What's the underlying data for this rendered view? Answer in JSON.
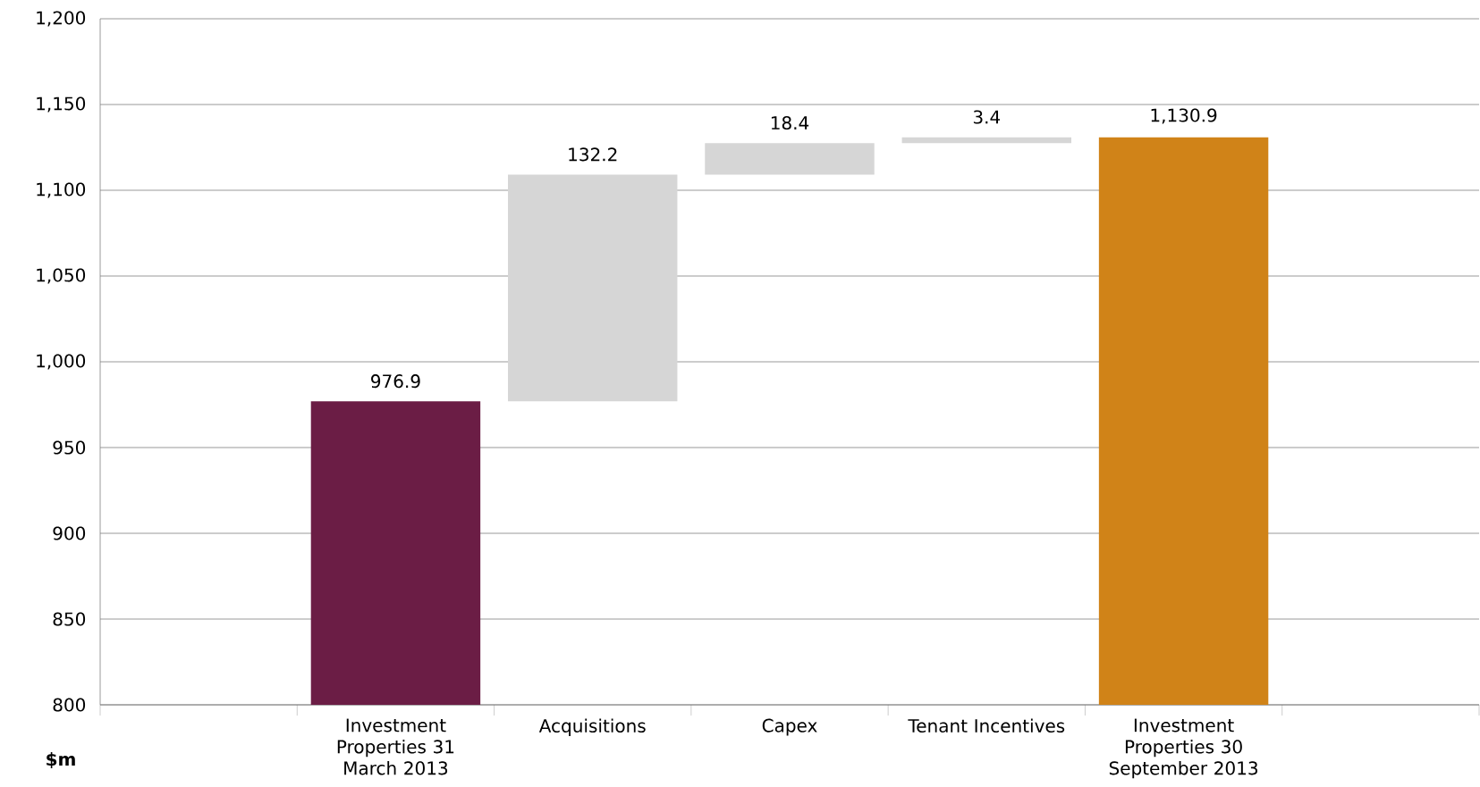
{
  "chart_data": {
    "type": "bar",
    "ylabel": "$m",
    "categories": [
      null,
      "Investment Properties 31 March 2013",
      "Acquisitions",
      "Capex",
      "Tenant Incentives",
      "Investment Properties 30 September 2013",
      null
    ],
    "values": [
      null,
      976.9,
      132.2,
      18.4,
      3.4,
      1130.9,
      null
    ],
    "base": [
      null,
      null,
      976.9,
      1109.1,
      1127.5,
      null,
      null
    ],
    "value_labels": [
      null,
      "976.9",
      "132.2",
      "18.4",
      "3.4",
      "1,130.9",
      null
    ],
    "colors": [
      null,
      "#6b1d45",
      "#d6d6d6",
      "#d6d6d6",
      "#d6d6d6",
      "#d08318",
      null
    ],
    "ylim": [
      800,
      1200
    ],
    "yticks": [
      800,
      850,
      900,
      950,
      {
        "value": 1000,
        "label": "1,000"
      },
      {
        "value": 1050,
        "label": "1,050"
      },
      {
        "value": 1100,
        "label": "1,100"
      },
      {
        "value": 1150,
        "label": "1,150"
      },
      {
        "value": 1200,
        "label": "1,200"
      }
    ],
    "grid": "y"
  }
}
